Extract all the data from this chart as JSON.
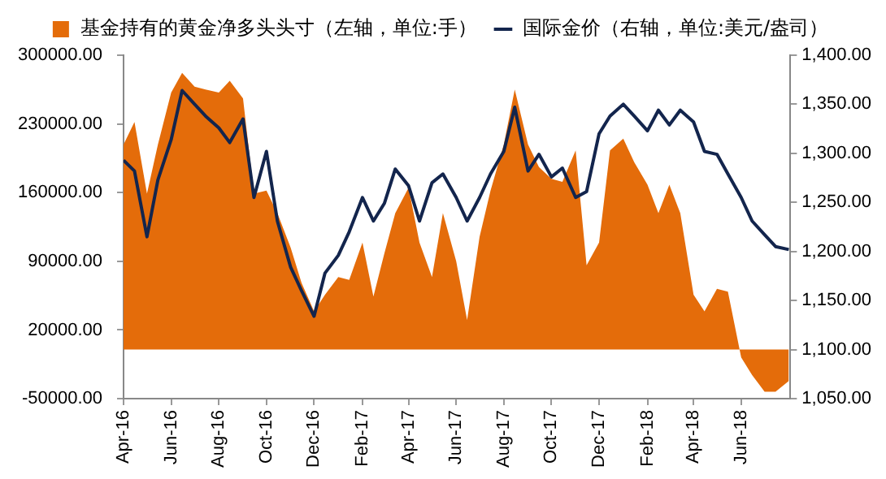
{
  "chart_data": {
    "type": "area",
    "x": [
      "2016-04-01",
      "2016-04-15",
      "2016-05-01",
      "2016-05-15",
      "2016-06-01",
      "2016-06-15",
      "2016-07-01",
      "2016-07-15",
      "2016-08-01",
      "2016-08-15",
      "2016-09-01",
      "2016-09-15",
      "2016-10-01",
      "2016-10-15",
      "2016-11-01",
      "2016-11-15",
      "2016-12-01",
      "2016-12-15",
      "2017-01-01",
      "2017-01-15",
      "2017-02-01",
      "2017-02-15",
      "2017-03-01",
      "2017-03-15",
      "2017-04-01",
      "2017-04-15",
      "2017-05-01",
      "2017-05-15",
      "2017-06-01",
      "2017-06-15",
      "2017-07-01",
      "2017-07-15",
      "2017-08-01",
      "2017-08-15",
      "2017-09-01",
      "2017-09-15",
      "2017-10-01",
      "2017-10-15",
      "2017-11-01",
      "2017-11-15",
      "2017-12-01",
      "2017-12-15",
      "2018-01-01",
      "2018-01-15",
      "2018-02-01",
      "2018-02-15",
      "2018-03-01",
      "2018-03-15",
      "2018-04-01",
      "2018-04-15",
      "2018-05-01",
      "2018-05-15",
      "2018-06-01",
      "2018-06-15",
      "2018-07-01",
      "2018-07-15",
      "2018-08-01"
    ],
    "series": [
      {
        "name": "基金持有的黄金净多头头寸（左轴，单位:手）",
        "color": "#e46c0a",
        "values": [
          209000,
          232000,
          159000,
          209000,
          262000,
          282000,
          268000,
          265000,
          262000,
          274000,
          256000,
          159000,
          162000,
          139000,
          104000,
          68000,
          39000,
          56000,
          74000,
          71000,
          109000,
          54000,
          98000,
          139000,
          165000,
          109000,
          74000,
          139000,
          90000,
          30000,
          115000,
          162000,
          209000,
          265000,
          209000,
          186000,
          174000,
          171000,
          203000,
          86000,
          109000,
          203000,
          215000,
          191000,
          168000,
          139000,
          168000,
          139000,
          56000,
          39000,
          62000,
          59000,
          -8000,
          -26000,
          -43000,
          -43000,
          -32000
        ]
      },
      {
        "name": "国际金价（右轴，单位:美元/盎司）",
        "type": "line",
        "axis": "y2",
        "color": "#13254d",
        "values": [
          1293,
          1282,
          1215,
          1273,
          1314,
          1364,
          1350,
          1338,
          1326,
          1311,
          1335,
          1255,
          1302,
          1231,
          1184,
          1160,
          1134,
          1178,
          1196,
          1220,
          1255,
          1231,
          1249,
          1284,
          1267,
          1231,
          1270,
          1279,
          1255,
          1231,
          1255,
          1279,
          1302,
          1347,
          1282,
          1299,
          1276,
          1285,
          1255,
          1261,
          1320,
          1338,
          1350,
          1338,
          1323,
          1344,
          1329,
          1344,
          1332,
          1302,
          1299,
          1279,
          1255,
          1231,
          1217,
          1205,
          1202
        ]
      }
    ],
    "xlim": [
      "2016-04-01",
      "2018-08-03"
    ],
    "xticks": [
      {
        "value": "2016-04-01",
        "label": "Apr-16"
      },
      {
        "value": "2016-06-01",
        "label": "Jun-16"
      },
      {
        "value": "2016-08-01",
        "label": "Aug-16"
      },
      {
        "value": "2016-10-01",
        "label": "Oct-16"
      },
      {
        "value": "2016-12-01",
        "label": "Dec-16"
      },
      {
        "value": "2017-02-01",
        "label": "Feb-17"
      },
      {
        "value": "2017-04-01",
        "label": "Apr-17"
      },
      {
        "value": "2017-06-01",
        "label": "Jun-17"
      },
      {
        "value": "2017-08-01",
        "label": "Aug-17"
      },
      {
        "value": "2017-10-01",
        "label": "Oct-17"
      },
      {
        "value": "2017-12-01",
        "label": "Dec-17"
      },
      {
        "value": "2018-02-01",
        "label": "Feb-18"
      },
      {
        "value": "2018-04-01",
        "label": "Apr-18"
      },
      {
        "value": "2018-06-01",
        "label": "Jun-18"
      }
    ],
    "ylim": [
      -50000,
      300000
    ],
    "yticks": [
      {
        "value": -50000,
        "label": "-50000.00"
      },
      {
        "value": 20000,
        "label": "20000.00"
      },
      {
        "value": 90000,
        "label": "90000.00"
      },
      {
        "value": 160000,
        "label": "160000.00"
      },
      {
        "value": 230000,
        "label": "230000.00"
      },
      {
        "value": 300000,
        "label": "300000.00"
      }
    ],
    "y2lim": [
      1050,
      1400
    ],
    "y2ticks": [
      {
        "value": 1050,
        "label": "1,050.00"
      },
      {
        "value": 1100,
        "label": "1,100.00"
      },
      {
        "value": 1150,
        "label": "1,150.00"
      },
      {
        "value": 1200,
        "label": "1,200.00"
      },
      {
        "value": 1250,
        "label": "1,250.00"
      },
      {
        "value": 1300,
        "label": "1,300.00"
      },
      {
        "value": 1350,
        "label": "1,350.00"
      },
      {
        "value": 1400,
        "label": "1,400.00"
      }
    ],
    "grid": false,
    "legend": "top",
    "marker": "none",
    "line_style": "solid"
  }
}
